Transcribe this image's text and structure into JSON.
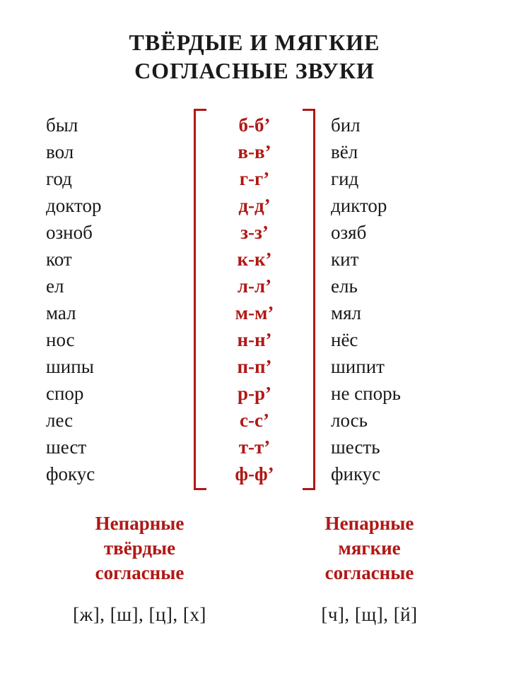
{
  "colors": {
    "text": "#1a1a1a",
    "accent": "#b01815",
    "bracket": "#b01815",
    "background": "#ffffff"
  },
  "typography": {
    "title_fontsize": 32,
    "body_fontsize": 27,
    "line_height": 38,
    "font_family": "Georgia, Times New Roman, serif"
  },
  "title": {
    "line1": "ТВЁРДЫЕ И МЯГКИЕ",
    "line2": "СОГЛАСНЫЕ ЗВУКИ"
  },
  "table": {
    "rows": [
      {
        "left": "был",
        "pair": "б-б’",
        "right": "бил"
      },
      {
        "left": "вол",
        "pair": "в-в’",
        "right": "вёл"
      },
      {
        "left": "год",
        "pair": "г-г’",
        "right": "гид"
      },
      {
        "left": "доктор",
        "pair": "д-д’",
        "right": "диктор"
      },
      {
        "left": "озноб",
        "pair": "з-з’",
        "right": "озяб"
      },
      {
        "left": "кот",
        "pair": "к-к’",
        "right": "кит"
      },
      {
        "left": "ел",
        "pair": "л-л’",
        "right": "ель"
      },
      {
        "left": "мал",
        "pair": "м-м’",
        "right": "мял"
      },
      {
        "left": "нос",
        "pair": "н-н’",
        "right": "нёс"
      },
      {
        "left": "шипы",
        "pair": "п-п’",
        "right": "шипит"
      },
      {
        "left": "спор",
        "pair": "р-р’",
        "right": "не спорь"
      },
      {
        "left": "лес",
        "pair": "с-с’",
        "right": "лось"
      },
      {
        "left": "шест",
        "pair": "т-т’",
        "right": "шесть"
      },
      {
        "left": "фокус",
        "pair": "ф-ф’",
        "right": "фикус"
      }
    ]
  },
  "footer": {
    "left": {
      "title_l1": "Непарные",
      "title_l2": "твёрдые",
      "title_l3": "согласные",
      "sounds": "[ж], [ш], [ц], [х]"
    },
    "right": {
      "title_l1": "Непарные",
      "title_l2": "мягкие",
      "title_l3": "согласные",
      "sounds": "[ч], [щ], [й]"
    }
  }
}
